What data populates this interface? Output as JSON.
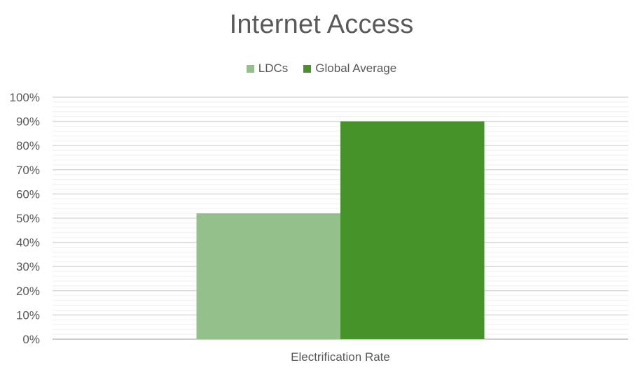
{
  "chart_data": {
    "type": "bar",
    "title": "Internet Access",
    "xlabel": "",
    "ylabel": "",
    "categories": [
      "Electrification Rate"
    ],
    "series": [
      {
        "name": "LDCs",
        "values": [
          52
        ],
        "color": "#93c08b"
      },
      {
        "name": "Global Average",
        "values": [
          90
        ],
        "color": "#459329"
      }
    ],
    "ylim": [
      0,
      100
    ],
    "yticks": [
      "0%",
      "10%",
      "20%",
      "30%",
      "40%",
      "50%",
      "60%",
      "70%",
      "80%",
      "90%",
      "100%"
    ],
    "grid": true,
    "legend_position": "top"
  }
}
